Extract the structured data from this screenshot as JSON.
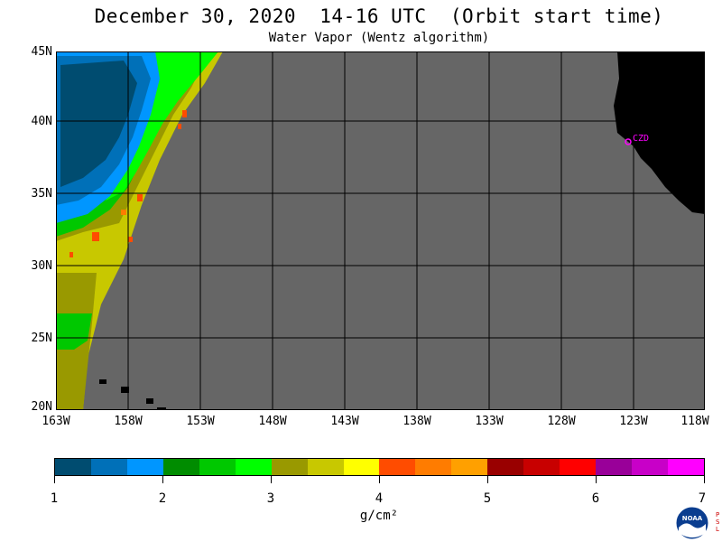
{
  "title": "December 30, 2020  14-16 UTC  (Orbit start time)",
  "subtitle": "Water Vapor (Wentz algorithm)",
  "map": {
    "lat_labels": [
      "45N",
      "40N",
      "35N",
      "30N",
      "25N",
      "20N"
    ],
    "lon_labels": [
      "163W",
      "158W",
      "153W",
      "148W",
      "143W",
      "138W",
      "133W",
      "128W",
      "123W",
      "118W"
    ],
    "station_label": "CZD",
    "colors": {
      "no_data": "#666666",
      "land": "#000000",
      "grid": "#000000",
      "station": "#ff00ff"
    }
  },
  "colorbar": {
    "colors": [
      "#004c70",
      "#0070b8",
      "#0096ff",
      "#008c00",
      "#00c800",
      "#00ff00",
      "#999900",
      "#c8c800",
      "#ffff00",
      "#ff4c00",
      "#ff7c00",
      "#ffa000",
      "#990000",
      "#c80000",
      "#ff0000",
      "#990099",
      "#c800c8",
      "#ff00ff"
    ],
    "tick_labels": [
      "1",
      "2",
      "3",
      "4",
      "5",
      "6",
      "7"
    ],
    "units": "g/cm²"
  },
  "logo": {
    "text": "NOAA",
    "side_text": "PSL"
  }
}
